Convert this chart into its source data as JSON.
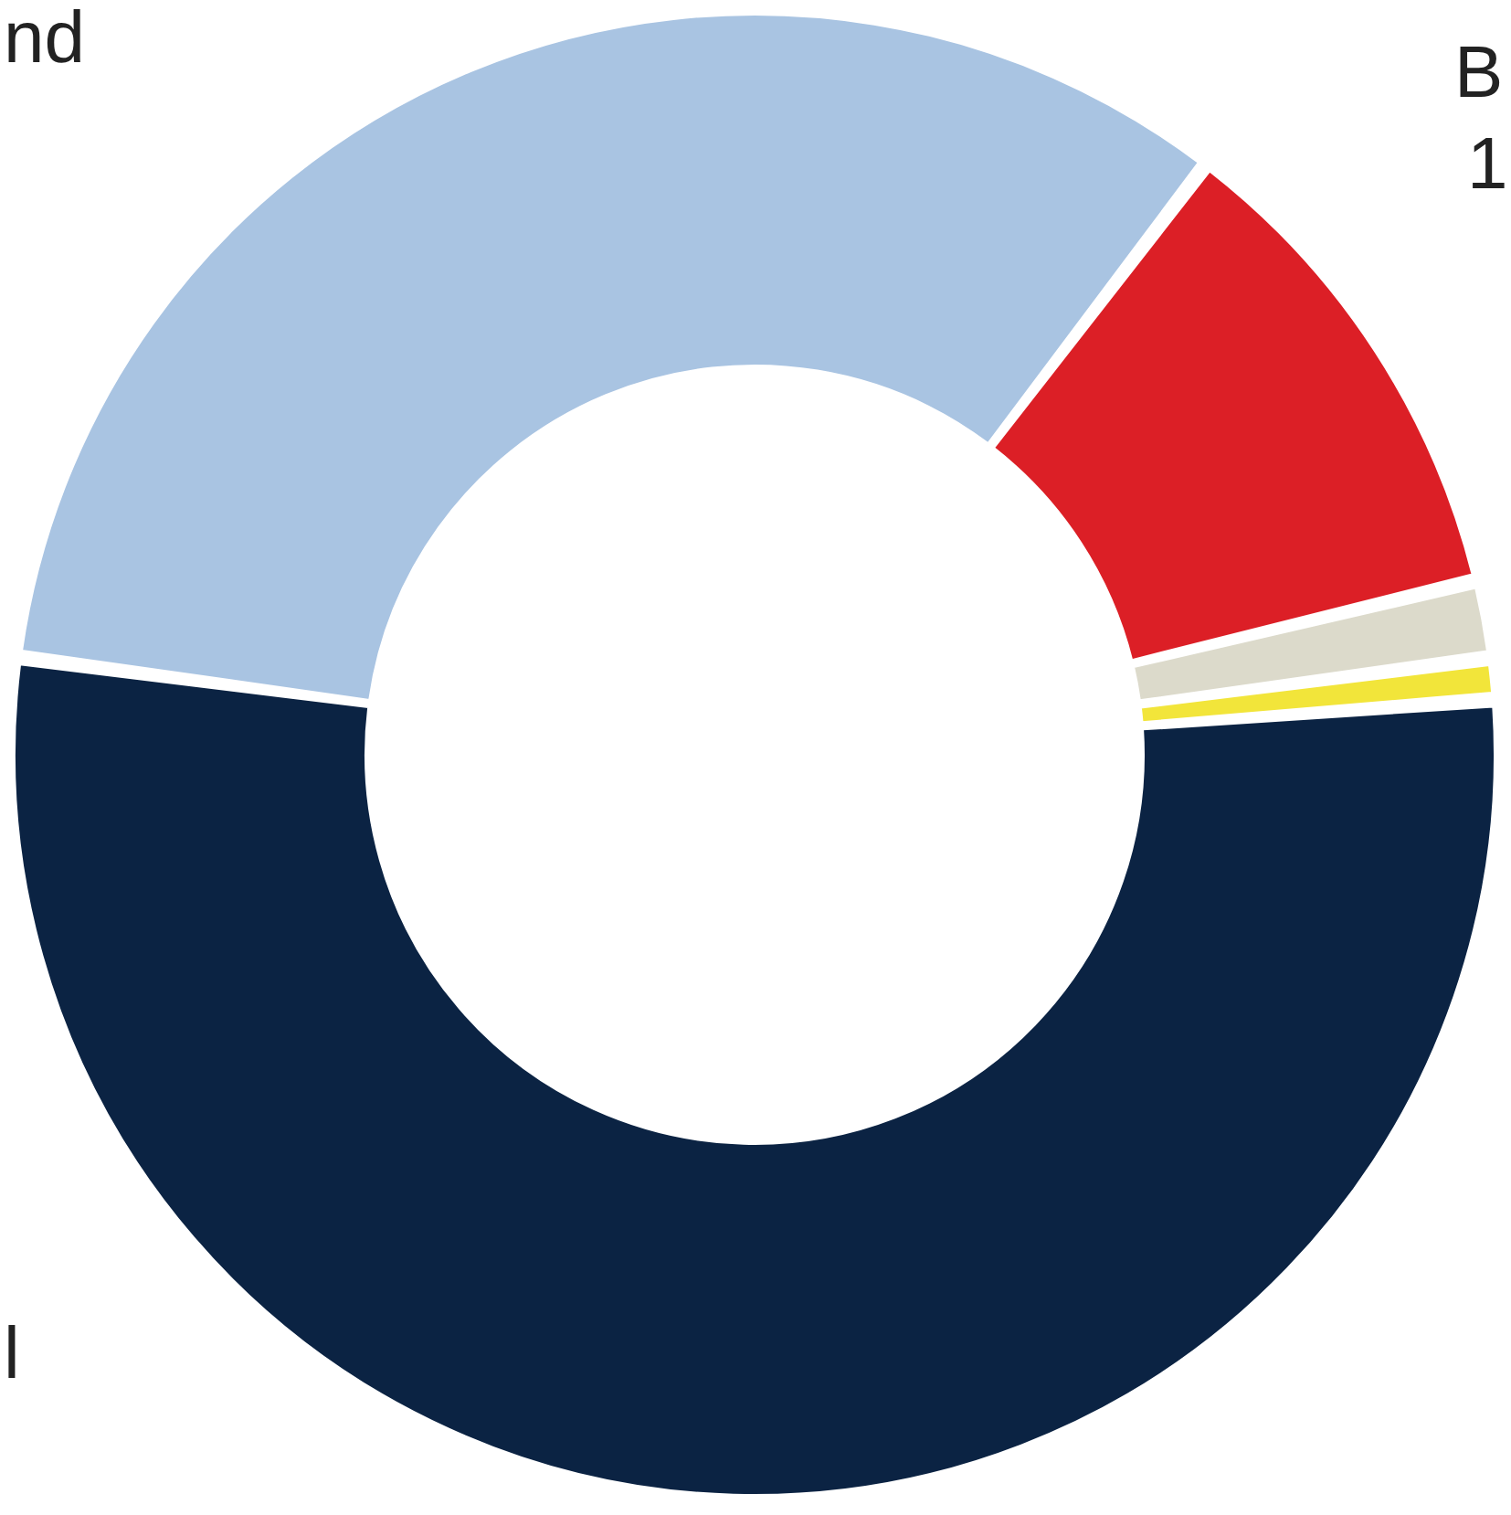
{
  "chart_data": {
    "type": "donut",
    "categories": [
      null,
      null,
      null,
      null,
      null
    ],
    "values": [
      53.8,
      0.6,
      1.4,
      10.7,
      33.5
    ],
    "colors": [
      "#0b2343",
      "#f2e53a",
      "#dcdacb",
      "#dc1f26",
      "#a9c4e2"
    ],
    "annotations": [
      "nd",
      "B",
      "1",
      "l"
    ]
  }
}
